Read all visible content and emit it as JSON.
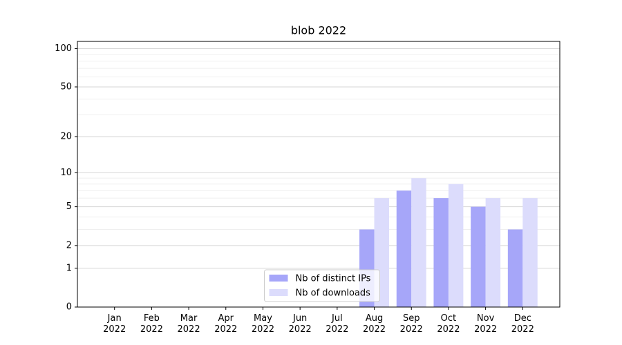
{
  "chart_data": {
    "type": "bar",
    "title": "blob 2022",
    "categories": [
      "Jan\n2022",
      "Feb\n2022",
      "Mar\n2022",
      "Apr\n2022",
      "May\n2022",
      "Jun\n2022",
      "Jul\n2022",
      "Aug\n2022",
      "Sep\n2022",
      "Oct\n2022",
      "Nov\n2022",
      "Dec\n2022"
    ],
    "series": [
      {
        "name": "Nb of distinct IPs",
        "color": "#a6a6f9",
        "values": [
          0,
          0,
          0,
          0,
          0,
          0,
          0,
          3,
          7,
          6,
          5,
          3
        ]
      },
      {
        "name": "Nb of downloads",
        "color": "#dcdcfc",
        "values": [
          0,
          0,
          0,
          0,
          0,
          0,
          0,
          6,
          9,
          8,
          6,
          6
        ]
      }
    ],
    "yscale": "log1p",
    "ylim": [
      0,
      114
    ],
    "yticks": [
      0,
      1,
      2,
      5,
      10,
      20,
      50,
      100
    ],
    "yminorticks": [
      3,
      4,
      6,
      7,
      8,
      9,
      30,
      40,
      60,
      70,
      80,
      90
    ],
    "grid": true,
    "legend": "lower center"
  }
}
